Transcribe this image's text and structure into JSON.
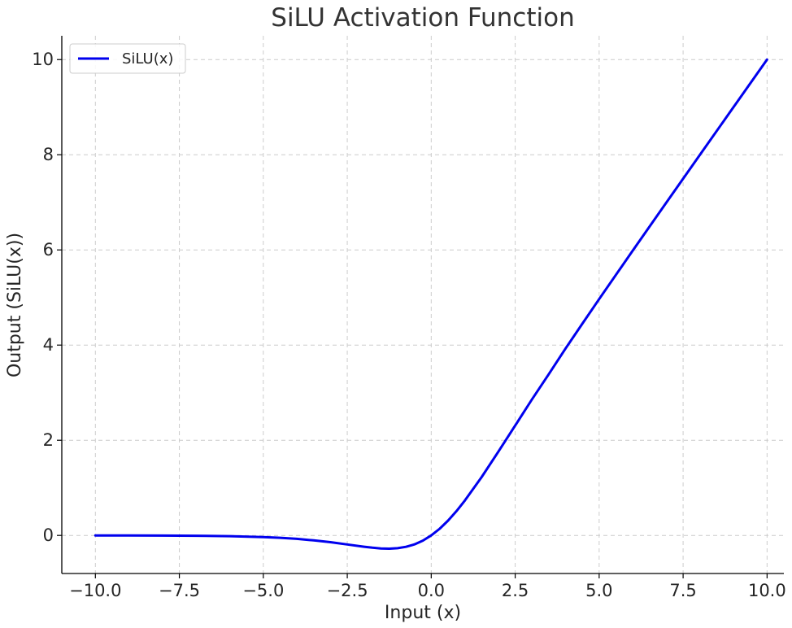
{
  "chart_data": {
    "type": "line",
    "title": "SiLU Activation Function",
    "xlabel": "Input (x)",
    "ylabel": "Output (SiLU(x))",
    "xlim": [
      -11.0,
      10.5
    ],
    "ylim": [
      -0.8,
      10.5
    ],
    "xticks": [
      -10.0,
      -7.5,
      -5.0,
      -2.5,
      0.0,
      2.5,
      5.0,
      7.5,
      10.0
    ],
    "xtick_labels": [
      "−10.0",
      "−7.5",
      "−5.0",
      "−2.5",
      "0.0",
      "2.5",
      "5.0",
      "7.5",
      "10.0"
    ],
    "yticks": [
      0,
      2,
      4,
      6,
      8,
      10
    ],
    "ytick_labels": [
      "0",
      "2",
      "4",
      "6",
      "8",
      "10"
    ],
    "grid": true,
    "legend": {
      "position": "top-left",
      "entries": [
        "SiLU(x)"
      ]
    },
    "series": [
      {
        "name": "SiLU(x)",
        "color": "#0000ee",
        "x": [
          -10,
          -9,
          -8,
          -7,
          -6,
          -5,
          -4.5,
          -4,
          -3.5,
          -3,
          -2.5,
          -2,
          -1.75,
          -1.5,
          -1.25,
          -1,
          -0.75,
          -0.5,
          -0.25,
          0,
          0.25,
          0.5,
          0.75,
          1,
          1.5,
          2,
          2.5,
          3,
          3.5,
          4,
          4.5,
          5,
          6,
          7,
          8,
          9,
          10
        ],
        "y": [
          -0.0005,
          -0.0011,
          -0.0027,
          -0.0064,
          -0.0148,
          -0.0335,
          -0.0493,
          -0.0719,
          -0.1037,
          -0.1423,
          -0.1896,
          -0.2384,
          -0.2583,
          -0.2736,
          -0.2785,
          -0.2689,
          -0.2398,
          -0.1888,
          -0.1094,
          0.0,
          0.1406,
          0.3112,
          0.5102,
          0.7311,
          1.2264,
          1.7616,
          2.3104,
          2.8577,
          3.3893,
          3.9281,
          4.4502,
          4.9665,
          5.9852,
          6.9936,
          7.9973,
          8.9989,
          9.9995
        ]
      }
    ]
  }
}
